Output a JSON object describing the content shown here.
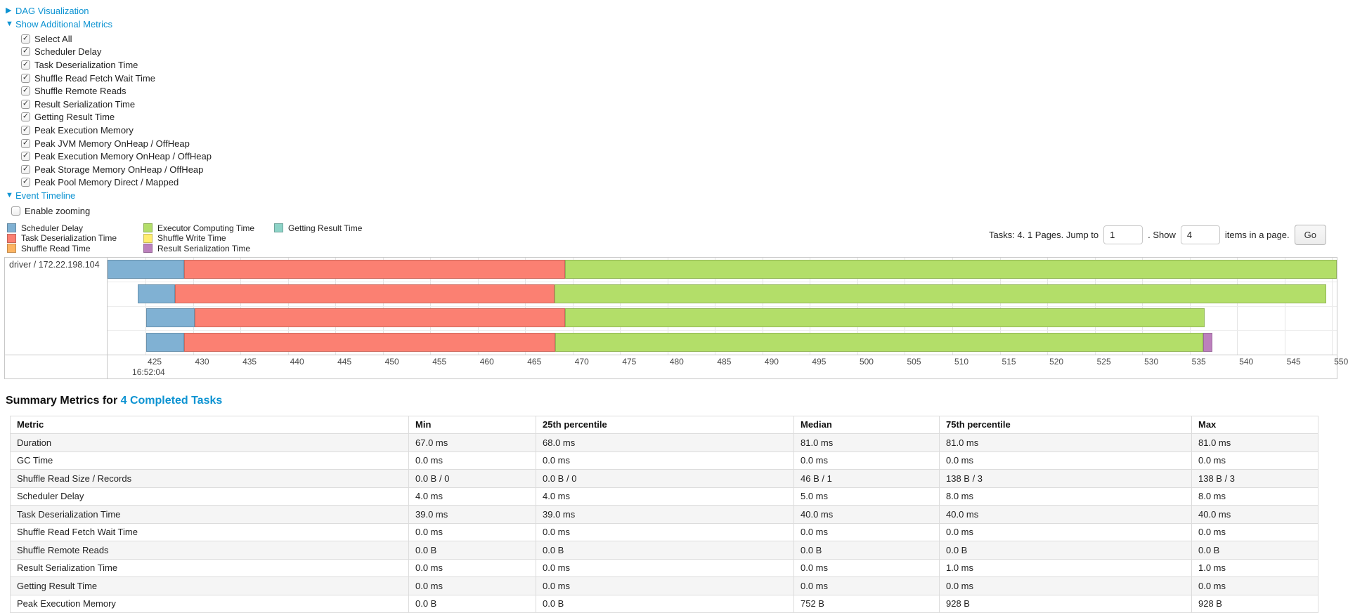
{
  "metrics_panel": {
    "dag_link": "DAG Visualization",
    "metrics_link": "Show Additional Metrics",
    "checkboxes": [
      "Select All",
      "Scheduler Delay",
      "Task Deserialization Time",
      "Shuffle Read Fetch Wait Time",
      "Shuffle Remote Reads",
      "Result Serialization Time",
      "Getting Result Time",
      "Peak Execution Memory",
      "Peak JVM Memory OnHeap / OffHeap",
      "Peak Execution Memory OnHeap / OffHeap",
      "Peak Storage Memory OnHeap / OffHeap",
      "Peak Pool Memory Direct / Mapped"
    ],
    "timeline_link": "Event Timeline",
    "enable_zooming_label": "Enable zooming"
  },
  "legend": {
    "columns": [
      [
        {
          "label": "Scheduler Delay",
          "color": "#80B1D3"
        },
        {
          "label": "Task Deserialization Time",
          "color": "#FB8072"
        },
        {
          "label": "Shuffle Read Time",
          "color": "#FDB462"
        }
      ],
      [
        {
          "label": "Executor Computing Time",
          "color": "#B3DE69"
        },
        {
          "label": "Shuffle Write Time",
          "color": "#FFED6F"
        },
        {
          "label": "Result Serialization Time",
          "color": "#BC80BD"
        }
      ],
      [
        {
          "label": "Getting Result Time",
          "color": "#8DD3C7"
        }
      ]
    ]
  },
  "pagination": {
    "summary_text": "Tasks: 4. 1 Pages. Jump to",
    "jump_value": "1",
    "show_label": ". Show",
    "show_value": "4",
    "suffix_label": "items in a page.",
    "go_label": "Go"
  },
  "timeline": {
    "executor_label": "driver / 172.22.198.104",
    "axis": {
      "min": 421.0,
      "max": 550.5,
      "tick_start": 425,
      "tick_end": 550,
      "tick_step": 5,
      "major_label": "16:52:04"
    },
    "tasks": [
      {
        "segments": [
          {
            "metric": "scheduler-delay",
            "color": "#80B1D3",
            "start": 421.0,
            "end": 429.1
          },
          {
            "metric": "task-deserialization-time",
            "color": "#FB8072",
            "start": 429.1,
            "end": 469.2
          },
          {
            "metric": "executor-computing-time",
            "color": "#B3DE69",
            "start": 469.2,
            "end": 550.5
          }
        ]
      },
      {
        "segments": [
          {
            "metric": "scheduler-delay",
            "color": "#80B1D3",
            "start": 424.2,
            "end": 428.1
          },
          {
            "metric": "task-deserialization-time",
            "color": "#FB8072",
            "start": 428.1,
            "end": 468.1
          },
          {
            "metric": "executor-computing-time",
            "color": "#B3DE69",
            "start": 468.1,
            "end": 549.4
          }
        ]
      },
      {
        "segments": [
          {
            "metric": "scheduler-delay",
            "color": "#80B1D3",
            "start": 425.1,
            "end": 430.2
          },
          {
            "metric": "task-deserialization-time",
            "color": "#FB8072",
            "start": 430.2,
            "end": 469.2
          },
          {
            "metric": "executor-computing-time",
            "color": "#B3DE69",
            "start": 469.2,
            "end": 536.6
          }
        ]
      },
      {
        "segments": [
          {
            "metric": "scheduler-delay",
            "color": "#80B1D3",
            "start": 425.1,
            "end": 429.1
          },
          {
            "metric": "task-deserialization-time",
            "color": "#FB8072",
            "start": 429.1,
            "end": 468.2
          },
          {
            "metric": "executor-computing-time",
            "color": "#B3DE69",
            "start": 468.2,
            "end": 536.4
          },
          {
            "metric": "result-serialization-time",
            "color": "#BC80BD",
            "start": 536.4,
            "end": 537.4
          }
        ]
      }
    ]
  },
  "summary_metrics": {
    "title_prefix": "Summary Metrics for",
    "title_link": "4 Completed Tasks",
    "table": {
      "headers": [
        "Metric",
        "Min",
        "25th percentile",
        "Median",
        "75th percentile",
        "Max"
      ],
      "rows": [
        [
          "Duration",
          "67.0 ms",
          "68.0 ms",
          "81.0 ms",
          "81.0 ms",
          "81.0 ms"
        ],
        [
          "GC Time",
          "0.0 ms",
          "0.0 ms",
          "0.0 ms",
          "0.0 ms",
          "0.0 ms"
        ],
        [
          "Shuffle Read Size / Records",
          "0.0 B / 0",
          "0.0 B / 0",
          "46 B / 1",
          "138 B / 3",
          "138 B / 3"
        ],
        [
          "Scheduler Delay",
          "4.0 ms",
          "4.0 ms",
          "5.0 ms",
          "8.0 ms",
          "8.0 ms"
        ],
        [
          "Task Deserialization Time",
          "39.0 ms",
          "39.0 ms",
          "40.0 ms",
          "40.0 ms",
          "40.0 ms"
        ],
        [
          "Shuffle Read Fetch Wait Time",
          "0.0 ms",
          "0.0 ms",
          "0.0 ms",
          "0.0 ms",
          "0.0 ms"
        ],
        [
          "Shuffle Remote Reads",
          "0.0 B",
          "0.0 B",
          "0.0 B",
          "0.0 B",
          "0.0 B"
        ],
        [
          "Result Serialization Time",
          "0.0 ms",
          "0.0 ms",
          "0.0 ms",
          "1.0 ms",
          "1.0 ms"
        ],
        [
          "Getting Result Time",
          "0.0 ms",
          "0.0 ms",
          "0.0 ms",
          "0.0 ms",
          "0.0 ms"
        ],
        [
          "Peak Execution Memory",
          "0.0 B",
          "0.0 B",
          "752 B",
          "928 B",
          "928 B"
        ]
      ]
    }
  },
  "colors": {
    "link": "#0d93d2",
    "scheduler_delay": "#80B1D3",
    "task_deserialization": "#FB8072",
    "shuffle_read": "#FDB462",
    "executor_computing": "#B3DE69",
    "shuffle_write": "#FFED6F",
    "result_serialization": "#BC80BD",
    "getting_result": "#8DD3C7"
  }
}
